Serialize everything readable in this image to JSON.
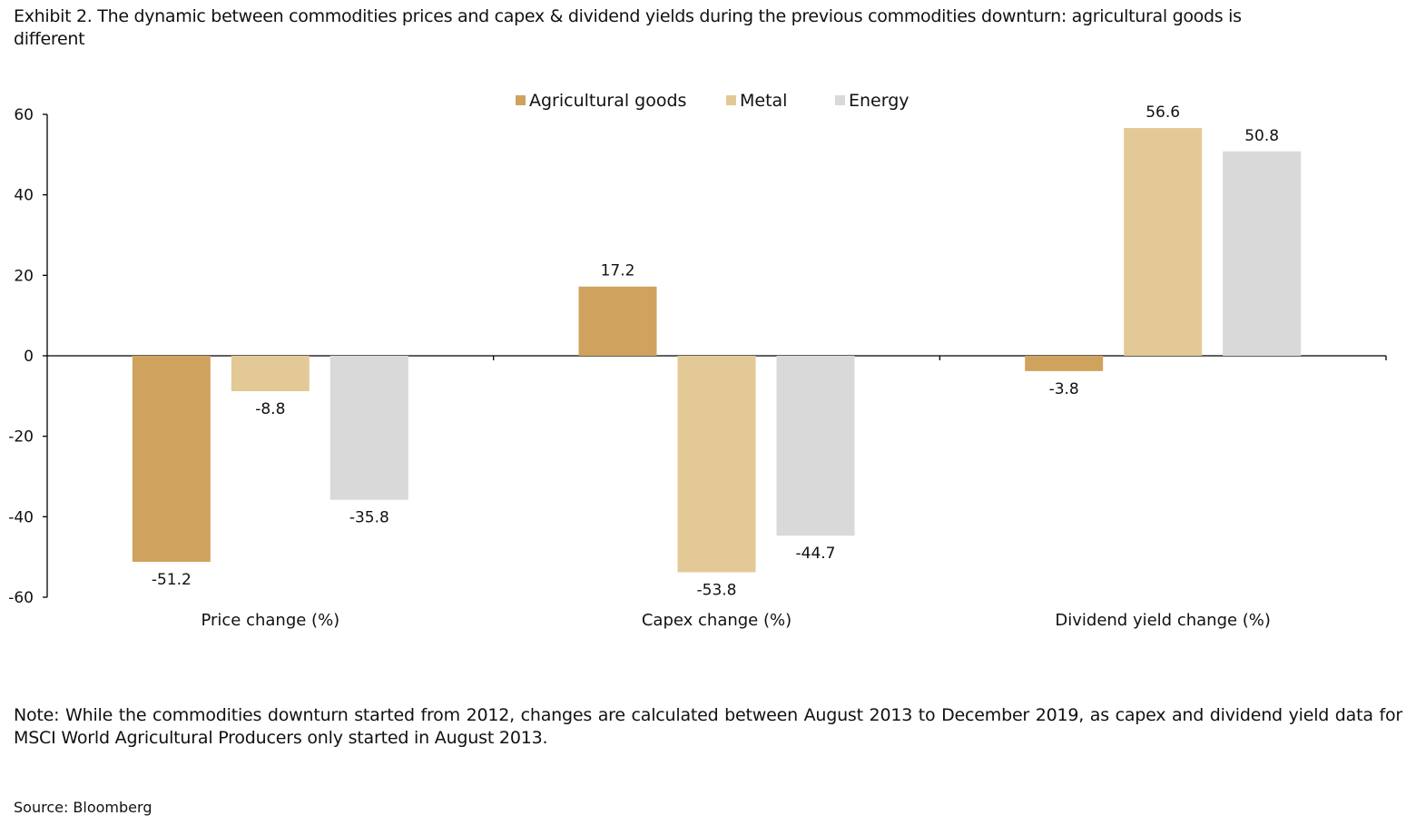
{
  "chart_data": {
    "type": "bar",
    "title": "Exhibit 2. The dynamic between commodities prices and capex & dividend yields during the previous commodities downturn: agricultural goods is different",
    "categories": [
      "Price change (%)",
      "Capex change (%)",
      "Dividend yield change (%)"
    ],
    "series": [
      {
        "name": "Agricultural goods",
        "color": "#CFA35E",
        "values": [
          -51.2,
          17.2,
          -3.8
        ]
      },
      {
        "name": "Metal",
        "color": "#E3C996",
        "values": [
          -8.8,
          -53.8,
          56.6
        ]
      },
      {
        "name": "Energy",
        "color": "#D9D9D9",
        "values": [
          -35.8,
          -44.7,
          50.8
        ]
      }
    ],
    "ylim": [
      -60,
      60
    ],
    "yticks": [
      60,
      40,
      20,
      0,
      -20,
      -40,
      -60
    ],
    "grid": false,
    "legend": "top-center",
    "data_labels": true
  },
  "note": "Note: While the commodities downturn started from 2012, changes are calculated between August 2013 to December 2019, as capex and dividend yield data for MSCI World Agricultural Producers only started in August 2013.",
  "source": "Source: Bloomberg"
}
